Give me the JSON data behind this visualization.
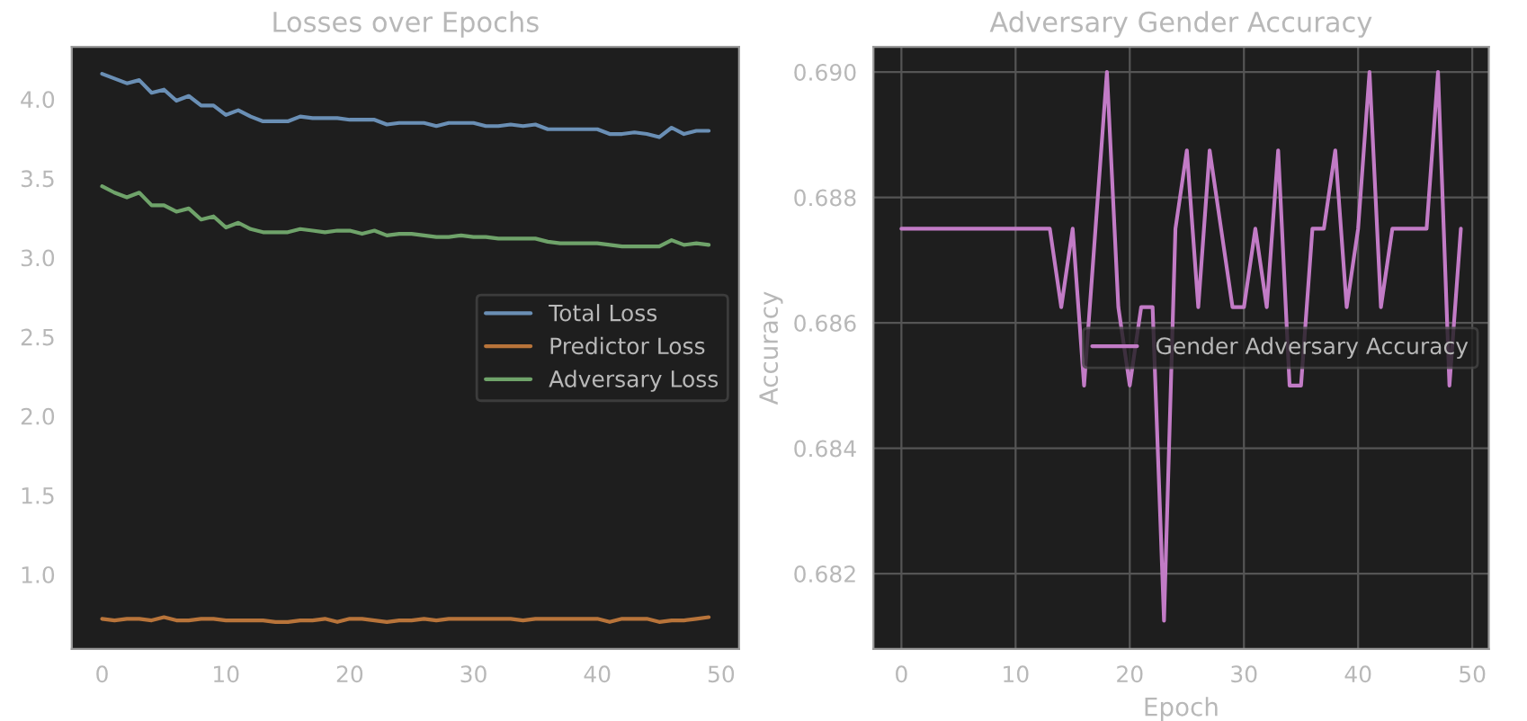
{
  "chart_data": [
    {
      "type": "line",
      "title": "Losses over Epochs",
      "x": [
        0,
        1,
        2,
        3,
        4,
        5,
        6,
        7,
        8,
        9,
        10,
        11,
        12,
        13,
        14,
        15,
        16,
        17,
        18,
        19,
        20,
        21,
        22,
        23,
        24,
        25,
        26,
        27,
        28,
        29,
        30,
        31,
        32,
        33,
        34,
        35,
        36,
        37,
        38,
        39,
        40,
        41,
        42,
        43,
        44,
        45,
        46,
        47,
        48,
        49
      ],
      "series": [
        {
          "name": "Total Loss",
          "color": "#6a8fb5",
          "values": [
            4.16,
            4.13,
            4.1,
            4.12,
            4.04,
            4.06,
            3.99,
            4.02,
            3.96,
            3.96,
            3.9,
            3.93,
            3.89,
            3.86,
            3.86,
            3.86,
            3.89,
            3.88,
            3.88,
            3.88,
            3.87,
            3.87,
            3.87,
            3.84,
            3.85,
            3.85,
            3.85,
            3.83,
            3.85,
            3.85,
            3.85,
            3.83,
            3.83,
            3.84,
            3.83,
            3.84,
            3.81,
            3.81,
            3.81,
            3.81,
            3.81,
            3.78,
            3.78,
            3.79,
            3.78,
            3.76,
            3.82,
            3.78,
            3.8,
            3.8
          ]
        },
        {
          "name": "Predictor Loss",
          "color": "#b8743a",
          "values": [
            0.72,
            0.71,
            0.72,
            0.72,
            0.71,
            0.73,
            0.71,
            0.71,
            0.72,
            0.72,
            0.71,
            0.71,
            0.71,
            0.71,
            0.7,
            0.7,
            0.71,
            0.71,
            0.72,
            0.7,
            0.72,
            0.72,
            0.71,
            0.7,
            0.71,
            0.71,
            0.72,
            0.71,
            0.72,
            0.72,
            0.72,
            0.72,
            0.72,
            0.72,
            0.71,
            0.72,
            0.72,
            0.72,
            0.72,
            0.72,
            0.72,
            0.7,
            0.72,
            0.72,
            0.72,
            0.7,
            0.71,
            0.71,
            0.72,
            0.73
          ]
        },
        {
          "name": "Adversary Loss",
          "color": "#6fa36a",
          "values": [
            3.45,
            3.41,
            3.38,
            3.41,
            3.33,
            3.33,
            3.29,
            3.31,
            3.24,
            3.26,
            3.19,
            3.22,
            3.18,
            3.16,
            3.16,
            3.16,
            3.18,
            3.17,
            3.16,
            3.17,
            3.17,
            3.15,
            3.17,
            3.14,
            3.15,
            3.15,
            3.14,
            3.13,
            3.13,
            3.14,
            3.13,
            3.13,
            3.12,
            3.12,
            3.12,
            3.12,
            3.1,
            3.09,
            3.09,
            3.09,
            3.09,
            3.08,
            3.07,
            3.07,
            3.07,
            3.07,
            3.11,
            3.08,
            3.09,
            3.08
          ]
        }
      ],
      "xlim": [
        -2.45,
        51.45
      ],
      "ylim": [
        0.53,
        4.33
      ],
      "xticks": [
        0,
        10,
        20,
        30,
        40,
        50
      ],
      "yticks": [
        {
          "value": 1,
          "label": "1.0"
        },
        {
          "value": 1.5,
          "label": "1.5"
        },
        {
          "value": 2,
          "label": "2.0"
        },
        {
          "value": 2.5,
          "label": "2.5"
        },
        {
          "value": 3,
          "label": "3.0"
        },
        {
          "value": 3.5,
          "label": "3.5"
        },
        {
          "value": 4,
          "label": "4.0"
        }
      ],
      "grid": false,
      "legend": "right"
    },
    {
      "type": "line",
      "title": "Adversary Gender Accuracy",
      "xlabel": "Epoch",
      "ylabel": "Accuracy",
      "x": [
        0,
        1,
        2,
        3,
        4,
        5,
        6,
        7,
        8,
        9,
        10,
        11,
        12,
        13,
        14,
        15,
        16,
        17,
        18,
        19,
        20,
        21,
        22,
        23,
        24,
        25,
        26,
        27,
        28,
        29,
        30,
        31,
        32,
        33,
        34,
        35,
        36,
        37,
        38,
        39,
        40,
        41,
        42,
        43,
        44,
        45,
        46,
        47,
        48,
        49
      ],
      "series": [
        {
          "name": "Gender Adversary Accuracy",
          "color": "#c27bc6",
          "values": [
            0.6875,
            0.6875,
            0.6875,
            0.6875,
            0.6875,
            0.6875,
            0.6875,
            0.6875,
            0.6875,
            0.6875,
            0.6875,
            0.6875,
            0.6875,
            0.6875,
            0.68625,
            0.6875,
            0.685,
            0.6875,
            0.69,
            0.68625,
            0.685,
            0.68625,
            0.68625,
            0.68125,
            0.6875,
            0.68875,
            0.68625,
            0.68875,
            0.6875,
            0.68625,
            0.68625,
            0.6875,
            0.68625,
            0.68875,
            0.685,
            0.685,
            0.6875,
            0.6875,
            0.68875,
            0.68625,
            0.6875,
            0.69,
            0.68625,
            0.6875,
            0.6875,
            0.6875,
            0.6875,
            0.69,
            0.685,
            0.6875
          ]
        }
      ],
      "xlim": [
        -2.45,
        51.45
      ],
      "ylim": [
        0.6808,
        0.6904
      ],
      "xticks": [
        0,
        10,
        20,
        30,
        40,
        50
      ],
      "yticks": [
        {
          "value": 0.682,
          "label": "0.682"
        },
        {
          "value": 0.684,
          "label": "0.684"
        },
        {
          "value": 0.686,
          "label": "0.686"
        },
        {
          "value": 0.688,
          "label": "0.688"
        },
        {
          "value": 0.69,
          "label": "0.690"
        }
      ],
      "grid": true,
      "legend": "right"
    }
  ]
}
